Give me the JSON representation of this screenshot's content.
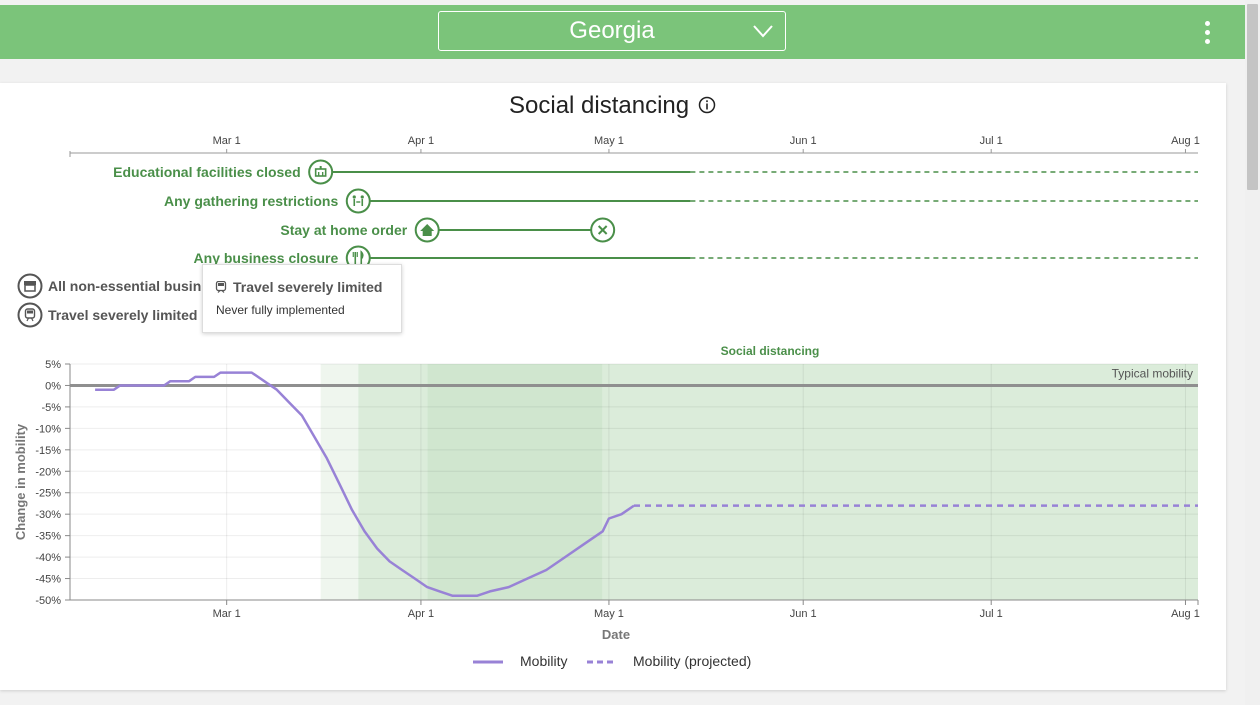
{
  "header": {
    "region": "Georgia",
    "colors": {
      "bar": "#7bc47a",
      "accent": "#4a8f49",
      "mobility": "#9882d6"
    }
  },
  "card": {
    "title": "Social distancing"
  },
  "timeline": {
    "ticks": [
      "Mar 1",
      "Apr 1",
      "May 1",
      "Jun 1",
      "Jul 1",
      "Aug 1"
    ],
    "policies": [
      {
        "label": "Educational facilities closed",
        "icon": "school-icon",
        "start": "2020-03-16",
        "end": null
      },
      {
        "label": "Any gathering restrictions",
        "icon": "gathering-icon",
        "start": "2020-03-22",
        "end": null
      },
      {
        "label": "Stay at home order",
        "icon": "home-icon",
        "start": "2020-04-02",
        "end": "2020-04-30"
      },
      {
        "label": "Any business closure",
        "icon": "restaurant-icon",
        "start": "2020-03-22",
        "end": null
      }
    ],
    "other_policies": [
      {
        "label": "All non-essential busin",
        "icon": "store-icon"
      },
      {
        "label": "Travel severely limited",
        "icon": "train-icon"
      }
    ]
  },
  "tooltip": {
    "title": "Travel severely limited",
    "body": "Never fully implemented",
    "icon": "train-icon"
  },
  "chart_data": {
    "type": "line",
    "title": "Social distancing",
    "xlabel": "Date",
    "ylabel": "Change in mobility",
    "x_range": [
      "2020-02-05",
      "2020-08-03"
    ],
    "ylim": [
      -50,
      5
    ],
    "y_ticks": [
      5,
      0,
      -5,
      -10,
      -15,
      -20,
      -25,
      -30,
      -35,
      -40,
      -45,
      -50
    ],
    "x_ticks": [
      {
        "label": "Mar 1",
        "date": "2020-03-01"
      },
      {
        "label": "Apr 1",
        "date": "2020-04-01"
      },
      {
        "label": "May 1",
        "date": "2020-05-01"
      },
      {
        "label": "Jun 1",
        "date": "2020-06-01"
      },
      {
        "label": "Jul 1",
        "date": "2020-07-01"
      },
      {
        "label": "Aug 1",
        "date": "2020-08-01"
      }
    ],
    "reference_line": {
      "label": "Typical mobility",
      "value": 0
    },
    "bands": [
      {
        "start": "2020-03-16",
        "end": "2020-03-22",
        "shade": "light"
      },
      {
        "start": "2020-03-22",
        "end": "2020-04-02",
        "shade": "medium"
      },
      {
        "start": "2020-04-02",
        "end": "2020-04-30",
        "shade": "dark"
      },
      {
        "start": "2020-04-30",
        "end": "2020-08-03",
        "shade": "medium"
      }
    ],
    "band_label": "Social distancing",
    "series": [
      {
        "name": "Mobility",
        "style": "solid",
        "points": [
          [
            "2020-02-09",
            -1
          ],
          [
            "2020-02-12",
            -1
          ],
          [
            "2020-02-13",
            0
          ],
          [
            "2020-02-20",
            0
          ],
          [
            "2020-02-21",
            1
          ],
          [
            "2020-02-24",
            1
          ],
          [
            "2020-02-25",
            2
          ],
          [
            "2020-02-28",
            2
          ],
          [
            "2020-02-29",
            3
          ],
          [
            "2020-03-05",
            3
          ],
          [
            "2020-03-07",
            1
          ],
          [
            "2020-03-09",
            -1
          ],
          [
            "2020-03-11",
            -4
          ],
          [
            "2020-03-13",
            -7
          ],
          [
            "2020-03-15",
            -12
          ],
          [
            "2020-03-17",
            -17
          ],
          [
            "2020-03-19",
            -23
          ],
          [
            "2020-03-21",
            -29
          ],
          [
            "2020-03-23",
            -34
          ],
          [
            "2020-03-25",
            -38
          ],
          [
            "2020-03-27",
            -41
          ],
          [
            "2020-03-29",
            -43
          ],
          [
            "2020-03-31",
            -45
          ],
          [
            "2020-04-02",
            -47
          ],
          [
            "2020-04-04",
            -48
          ],
          [
            "2020-04-06",
            -49
          ],
          [
            "2020-04-10",
            -49
          ],
          [
            "2020-04-12",
            -48
          ],
          [
            "2020-04-15",
            -47
          ],
          [
            "2020-04-18",
            -45
          ],
          [
            "2020-04-21",
            -43
          ],
          [
            "2020-04-24",
            -40
          ],
          [
            "2020-04-27",
            -37
          ],
          [
            "2020-04-30",
            -34
          ],
          [
            "2020-05-01",
            -31
          ],
          [
            "2020-05-03",
            -30
          ],
          [
            "2020-05-05",
            -28
          ]
        ]
      },
      {
        "name": "Mobility (projected)",
        "style": "dashed",
        "points": [
          [
            "2020-05-05",
            -28
          ],
          [
            "2020-08-03",
            -28
          ]
        ]
      }
    ],
    "legend": [
      "Mobility",
      "Mobility (projected)"
    ],
    "legend_position": "bottom",
    "grid": true
  }
}
